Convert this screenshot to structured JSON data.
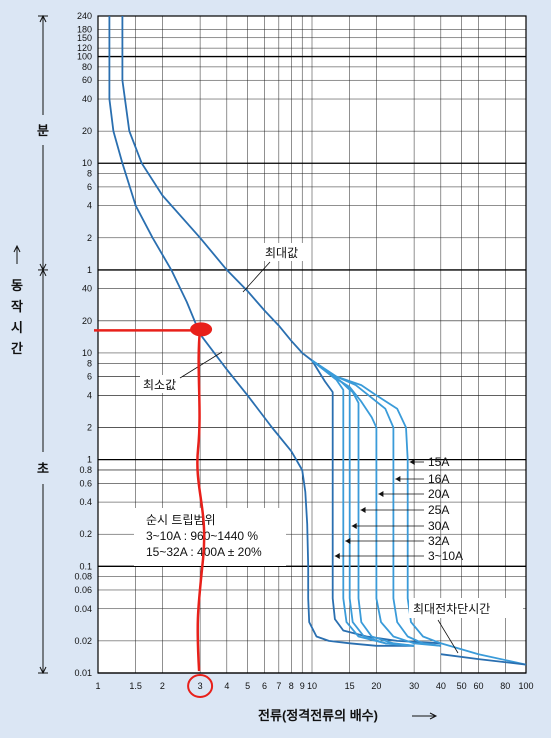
{
  "chart_data": {
    "type": "line",
    "title": "",
    "xlabel": "전류(정격전류의 배수)",
    "ylabel_chars": [
      "동",
      "작",
      "시",
      "간"
    ],
    "unit_labels": {
      "minutes": "분",
      "seconds": "초"
    },
    "x_scale": "log",
    "xlim": [
      1,
      100
    ],
    "x_ticks": [
      1,
      1.5,
      2,
      3,
      4,
      5,
      6,
      7,
      8,
      9,
      10,
      15,
      20,
      30,
      40,
      50,
      60,
      80,
      100
    ],
    "x_tick_labels": [
      "1",
      "1.5",
      "2",
      "3",
      "4",
      "5",
      "6",
      "7",
      "8",
      "9",
      "10",
      "15",
      "20",
      "30",
      "40",
      "50",
      "60",
      "80",
      "100"
    ],
    "y_scale": "log",
    "y_unit": "seconds",
    "ylim": [
      0.01,
      14400
    ],
    "y_ticks_minutes": [
      240,
      180,
      150,
      120,
      100,
      80,
      60,
      40,
      20,
      10,
      8,
      6,
      4,
      2,
      1
    ],
    "y_tick_labels_minutes": [
      "240",
      "180",
      "150",
      "120",
      "100",
      "80",
      "60",
      "40",
      "20",
      "10",
      "8",
      "6",
      "4",
      "2",
      "1"
    ],
    "y_ticks_seconds": [
      40,
      20,
      10,
      8,
      6,
      4,
      2,
      1,
      0.8,
      0.6,
      0.4,
      0.2,
      0.1,
      0.08,
      0.06,
      0.04,
      0.02,
      0.01
    ],
    "y_tick_labels_seconds": [
      "40",
      "20",
      "10",
      "8",
      "6",
      "4",
      "2",
      "1",
      "0.8",
      "0.6",
      "0.4",
      "0.2",
      "0.1",
      "0.08",
      "0.06",
      "0.04",
      "0.02",
      "0.01"
    ],
    "grid": true,
    "series": [
      {
        "name": "최소값",
        "color": "#2a6fb0",
        "x": [
          1.13,
          1.13,
          1.18,
          1.3,
          1.5,
          1.8,
          2.2,
          2.6,
          3.0,
          4.0,
          5.0,
          6.5,
          8.0,
          9.0,
          9.3,
          9.5,
          9.6,
          9.6,
          9.7,
          10.5,
          12,
          15,
          20,
          30
        ],
        "y": [
          14400,
          2400,
          1200,
          600,
          240,
          120,
          60,
          30,
          15,
          7,
          4,
          2,
          1.2,
          0.8,
          0.5,
          0.25,
          0.1,
          0.05,
          0.03,
          0.022,
          0.02,
          0.019,
          0.018,
          0.018
        ]
      },
      {
        "name": "최대값",
        "color": "#2a6fb0",
        "x": [
          1.3,
          1.3,
          1.4,
          1.6,
          2.0,
          3.0,
          4.0,
          5.0,
          6.0,
          7.0,
          8.0,
          9.0,
          10.0
        ],
        "y": [
          14400,
          3600,
          1200,
          600,
          300,
          120,
          60,
          38,
          25,
          18,
          13,
          10,
          8.5
        ]
      },
      {
        "name": "3~10A",
        "color": "#2a6fb0",
        "x": [
          10.0,
          11.5,
          12.5,
          12.5,
          12.8,
          14,
          18,
          25,
          40
        ],
        "y": [
          8.5,
          5.4,
          4.3,
          0.05,
          0.032,
          0.025,
          0.022,
          0.02,
          0.019
        ]
      },
      {
        "name": "15A",
        "color": "#3a9bd9",
        "x": [
          10.0,
          13,
          17,
          20,
          25,
          27.5,
          28,
          28,
          29,
          33,
          40,
          60,
          100
        ],
        "y": [
          8.5,
          6,
          5,
          4,
          3,
          2,
          1,
          0.05,
          0.03,
          0.022,
          0.019,
          0.015,
          0.012
        ]
      },
      {
        "name": "16A",
        "color": "#3a9bd9",
        "x": [
          10.0,
          13,
          16,
          19,
          22,
          24,
          24,
          25,
          28,
          33,
          40
        ],
        "y": [
          8.5,
          6,
          5,
          3.8,
          3,
          2,
          0.05,
          0.03,
          0.022,
          0.019,
          0.018
        ]
      },
      {
        "name": "20A",
        "color": "#3a9bd9",
        "x": [
          10.0,
          12.5,
          15,
          17,
          19,
          20,
          20,
          21,
          24,
          30,
          40
        ],
        "y": [
          8.5,
          6,
          4.8,
          3.5,
          2.5,
          2,
          0.05,
          0.03,
          0.022,
          0.019,
          0.018
        ]
      },
      {
        "name": "25A",
        "color": "#3a9bd9",
        "x": [
          10.0,
          12,
          14,
          15.5,
          16.5,
          16.5,
          17,
          19,
          24,
          30
        ],
        "y": [
          8.5,
          6.5,
          5.2,
          4.3,
          3.4,
          0.05,
          0.03,
          0.022,
          0.019,
          0.018
        ]
      },
      {
        "name": "30A",
        "color": "#3a9bd9",
        "x": [
          10.0,
          12,
          13.5,
          15,
          15,
          15.5,
          17.5,
          22,
          30
        ],
        "y": [
          8.5,
          6.5,
          5.5,
          4.5,
          0.05,
          0.03,
          0.022,
          0.019,
          0.018
        ]
      },
      {
        "name": "32A",
        "color": "#3a9bd9",
        "x": [
          10.0,
          11.5,
          13,
          14,
          14,
          14.5,
          16.5,
          22,
          30
        ],
        "y": [
          8.5,
          6.8,
          5.6,
          4.5,
          0.05,
          0.03,
          0.022,
          0.019,
          0.018
        ]
      },
      {
        "name": "최대전차단시간",
        "color": "#2a6fb0",
        "x": [
          40,
          60,
          100
        ],
        "y": [
          0.015,
          0.0135,
          0.012
        ]
      }
    ],
    "curve_labels": [
      "15A",
      "16A",
      "20A",
      "25A",
      "30A",
      "32A",
      "3~10A"
    ],
    "curve_label_targets": [
      28,
      24,
      20,
      16.5,
      15,
      14,
      12.5
    ],
    "annotations": {
      "max_label": "최대값",
      "min_label": "최소값",
      "breaking_label": "최대전차단시간",
      "trip_range": [
        "순시 트립범위",
        "3~10A : 960~1440 %",
        "15~32A : 400A ± 20%"
      ]
    },
    "marker": {
      "x": 3,
      "y": 17,
      "color": "#e8201a"
    }
  }
}
